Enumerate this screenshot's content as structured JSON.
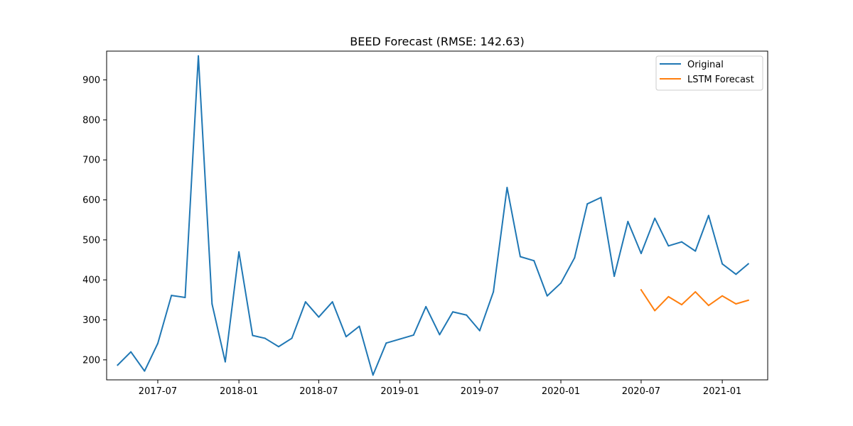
{
  "chart_data": {
    "type": "line",
    "title": "BEED Forecast (RMSE: 142.63)",
    "xlabel": "",
    "ylabel": "",
    "xlim": [
      "2017-03-07",
      "2021-04-14"
    ],
    "ylim": [
      150,
      972
    ],
    "x_ticks": [
      "2017-07",
      "2018-01",
      "2018-07",
      "2019-01",
      "2019-07",
      "2020-01",
      "2020-07",
      "2021-01"
    ],
    "y_ticks": [
      200,
      300,
      400,
      500,
      600,
      700,
      800,
      900
    ],
    "grid": false,
    "legend_placement": "upper right",
    "series": [
      {
        "name": "Original",
        "color": "#1f77b4",
        "points": [
          [
            "2017-04-01",
            187
          ],
          [
            "2017-05-01",
            220
          ],
          [
            "2017-06-01",
            172
          ],
          [
            "2017-07-01",
            241
          ],
          [
            "2017-08-01",
            361
          ],
          [
            "2017-09-01",
            356
          ],
          [
            "2017-10-01",
            960
          ],
          [
            "2017-11-01",
            340
          ],
          [
            "2017-12-01",
            195
          ],
          [
            "2018-01-01",
            470
          ],
          [
            "2018-02-01",
            261
          ],
          [
            "2018-03-01",
            254
          ],
          [
            "2018-04-01",
            233
          ],
          [
            "2018-05-01",
            254
          ],
          [
            "2018-06-01",
            345
          ],
          [
            "2018-07-01",
            307
          ],
          [
            "2018-08-01",
            345
          ],
          [
            "2018-09-01",
            258
          ],
          [
            "2018-10-01",
            284
          ],
          [
            "2018-11-01",
            162
          ],
          [
            "2018-12-01",
            242
          ],
          [
            "2019-01-01",
            252
          ],
          [
            "2019-02-01",
            262
          ],
          [
            "2019-03-01",
            333
          ],
          [
            "2019-04-01",
            263
          ],
          [
            "2019-05-01",
            320
          ],
          [
            "2019-06-01",
            312
          ],
          [
            "2019-07-01",
            273
          ],
          [
            "2019-08-01",
            370
          ],
          [
            "2019-09-01",
            631
          ],
          [
            "2019-10-01",
            458
          ],
          [
            "2019-11-01",
            448
          ],
          [
            "2019-12-01",
            360
          ],
          [
            "2020-01-01",
            392
          ],
          [
            "2020-02-01",
            455
          ],
          [
            "2020-03-01",
            590
          ],
          [
            "2020-04-01",
            606
          ],
          [
            "2020-05-01",
            409
          ],
          [
            "2020-06-01",
            546
          ],
          [
            "2020-07-01",
            466
          ],
          [
            "2020-08-01",
            554
          ],
          [
            "2020-09-01",
            485
          ],
          [
            "2020-10-01",
            495
          ],
          [
            "2020-11-01",
            472
          ],
          [
            "2020-12-01",
            561
          ],
          [
            "2021-01-01",
            440
          ],
          [
            "2021-02-01",
            414
          ],
          [
            "2021-03-01",
            440
          ]
        ]
      },
      {
        "name": "LSTM Forecast",
        "color": "#ff7f0e",
        "points": [
          [
            "2020-07-01",
            375
          ],
          [
            "2020-08-01",
            323
          ],
          [
            "2020-09-01",
            358
          ],
          [
            "2020-10-01",
            338
          ],
          [
            "2020-11-01",
            370
          ],
          [
            "2020-12-01",
            336
          ],
          [
            "2021-01-01",
            360
          ],
          [
            "2021-02-01",
            340
          ],
          [
            "2021-03-01",
            349
          ]
        ]
      }
    ]
  }
}
